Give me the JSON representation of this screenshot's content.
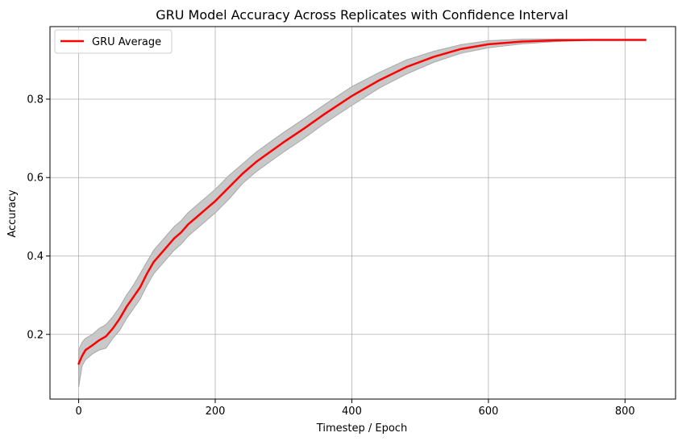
{
  "chart_data": {
    "type": "line",
    "title": "GRU Model Accuracy Across Replicates with Confidence Interval",
    "xlabel": "Timestep / Epoch",
    "ylabel": "Accuracy",
    "xlim": [
      -42,
      874
    ],
    "ylim": [
      0.035,
      0.985
    ],
    "x_ticks": [
      0,
      200,
      400,
      600,
      800
    ],
    "x_tick_labels": [
      "0",
      "200",
      "400",
      "600",
      "800"
    ],
    "y_ticks": [
      0.2,
      0.4,
      0.6,
      0.8
    ],
    "y_tick_labels": [
      "0.2",
      "0.4",
      "0.6",
      "0.8"
    ],
    "grid": true,
    "legend_position": "top-left",
    "series": [
      {
        "name": "GRU Average",
        "color": "#ff0000",
        "x": [
          0,
          5,
          10,
          20,
          30,
          40,
          50,
          60,
          70,
          80,
          90,
          100,
          110,
          120,
          130,
          140,
          150,
          160,
          180,
          200,
          220,
          240,
          260,
          280,
          300,
          330,
          360,
          400,
          440,
          480,
          520,
          560,
          600,
          650,
          700,
          750,
          800,
          830
        ],
        "values": [
          0.125,
          0.145,
          0.16,
          0.172,
          0.185,
          0.195,
          0.215,
          0.24,
          0.27,
          0.295,
          0.32,
          0.355,
          0.385,
          0.405,
          0.425,
          0.445,
          0.46,
          0.48,
          0.51,
          0.54,
          0.575,
          0.61,
          0.64,
          0.665,
          0.69,
          0.725,
          0.762,
          0.808,
          0.848,
          0.882,
          0.908,
          0.928,
          0.94,
          0.947,
          0.95,
          0.951,
          0.951,
          0.951
        ]
      }
    ],
    "confidence_band": {
      "color": "#c8c8c8",
      "edge_color": "#a8a8a8",
      "x": [
        0,
        5,
        10,
        20,
        30,
        40,
        50,
        60,
        70,
        80,
        90,
        100,
        110,
        120,
        130,
        140,
        150,
        160,
        180,
        200,
        220,
        240,
        260,
        280,
        300,
        330,
        360,
        400,
        440,
        480,
        520,
        560,
        600,
        650,
        700,
        750,
        800,
        830
      ],
      "lower": [
        0.065,
        0.12,
        0.135,
        0.15,
        0.16,
        0.165,
        0.19,
        0.21,
        0.24,
        0.265,
        0.29,
        0.325,
        0.355,
        0.375,
        0.395,
        0.415,
        0.43,
        0.45,
        0.48,
        0.51,
        0.545,
        0.585,
        0.615,
        0.64,
        0.665,
        0.7,
        0.738,
        0.784,
        0.828,
        0.864,
        0.894,
        0.917,
        0.931,
        0.941,
        0.947,
        0.95,
        0.95,
        0.95
      ],
      "upper": [
        0.16,
        0.18,
        0.19,
        0.2,
        0.215,
        0.225,
        0.245,
        0.27,
        0.3,
        0.325,
        0.355,
        0.385,
        0.415,
        0.435,
        0.455,
        0.475,
        0.49,
        0.51,
        0.54,
        0.57,
        0.605,
        0.635,
        0.665,
        0.69,
        0.715,
        0.75,
        0.786,
        0.832,
        0.868,
        0.9,
        0.922,
        0.939,
        0.949,
        0.953,
        0.953,
        0.952,
        0.952,
        0.952
      ]
    }
  }
}
